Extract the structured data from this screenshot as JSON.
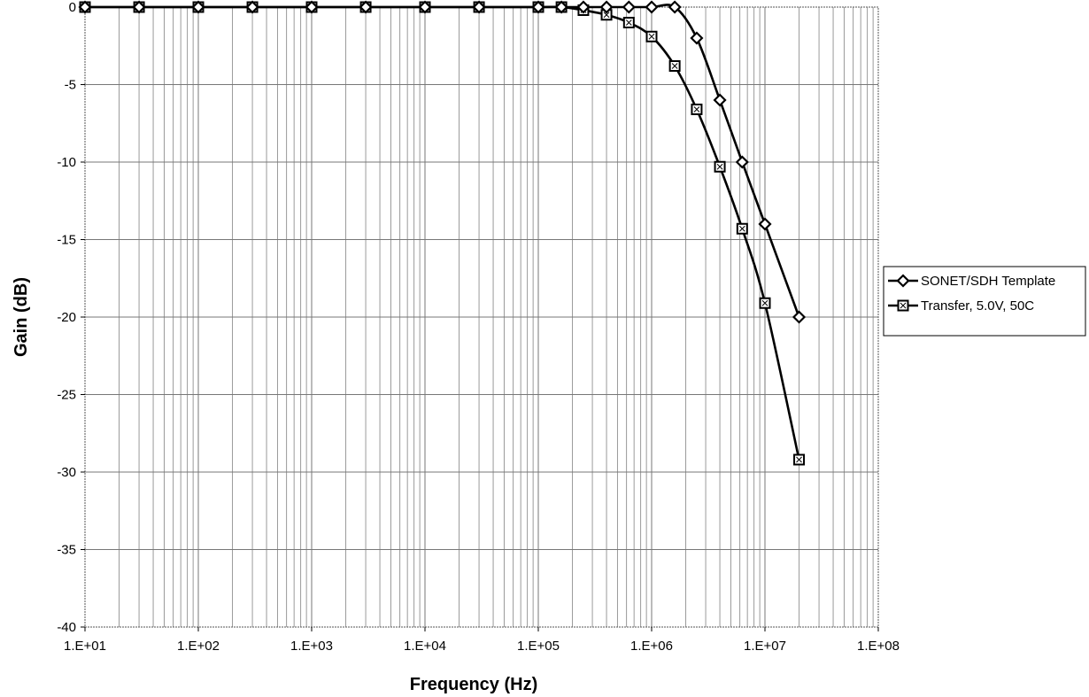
{
  "chart_data": {
    "type": "line",
    "title": "",
    "xlabel": "Frequency (Hz)",
    "ylabel": "Gain (dB)",
    "xscale": "log",
    "xlim": [
      10,
      100000000
    ],
    "ylim": [
      -40,
      0
    ],
    "grid": true,
    "legend_position": "right",
    "x_ticks": [
      "1.E+01",
      "1.E+02",
      "1.E+03",
      "1.E+04",
      "1.E+05",
      "1.E+06",
      "1.E+07",
      "1.E+08"
    ],
    "y_ticks": [
      "0",
      "-5",
      "-10",
      "-15",
      "-20",
      "-25",
      "-30",
      "-35",
      "-40"
    ],
    "series": [
      {
        "name": "SONET/SDH Template",
        "marker": "diamond",
        "x": [
          10,
          30,
          100,
          300,
          1000,
          3000,
          10000,
          30000,
          100000,
          160000,
          250000,
          400000,
          630000,
          1000000,
          1600000,
          2500000,
          4000000,
          6300000,
          10000000,
          20000000
        ],
        "y": [
          0,
          0,
          0,
          0,
          0,
          0,
          0,
          0,
          0,
          0,
          0,
          0,
          0,
          0,
          0,
          -2,
          -6,
          -10,
          -14,
          -20
        ]
      },
      {
        "name": "Transfer, 5.0V, 50C",
        "marker": "square",
        "x": [
          10,
          30,
          100,
          300,
          1000,
          3000,
          10000,
          30000,
          100000,
          160000,
          250000,
          400000,
          630000,
          1000000,
          1600000,
          2500000,
          4000000,
          6300000,
          10000000,
          20000000
        ],
        "y": [
          0,
          0,
          0,
          0,
          0,
          0,
          0,
          0,
          0,
          0,
          -0.2,
          -0.5,
          -1.0,
          -1.9,
          -3.8,
          -6.6,
          -10.3,
          -14.3,
          -19.1,
          -29.2
        ]
      }
    ]
  }
}
